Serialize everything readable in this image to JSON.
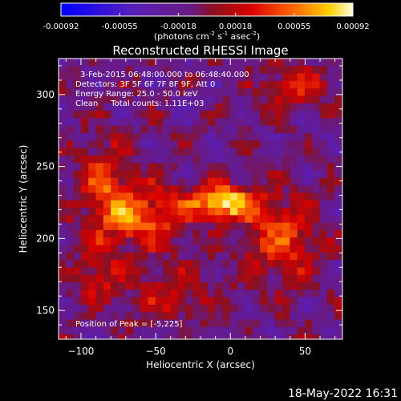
{
  "chart_data": {
    "type": "heatmap",
    "title": "Reconstructed RHESSI Image",
    "xlabel": "Heliocentric X (arcsec)",
    "ylabel": "Heliocentric Y (arcsec)",
    "xlim": [
      -115,
      75
    ],
    "ylim": [
      130,
      325
    ],
    "xticks": [
      -100,
      -50,
      0,
      50
    ],
    "yticks": [
      150,
      200,
      250,
      300
    ],
    "colorbar": {
      "range": [
        -0.00092,
        0.00092
      ],
      "tick_values": [
        -0.00092,
        -0.00055,
        -0.00018,
        0.00018,
        0.00055,
        0.00092
      ],
      "tick_labels": [
        "-0.00092",
        "-0.00055",
        "-0.00018",
        "0.00018",
        "0.00055",
        "0.00092"
      ],
      "units_label": "(photons cm",
      "units_sup1": "-2",
      "units_mid1": " s",
      "units_sup2": "-1",
      "units_mid2": " asec",
      "units_sup3": "-2",
      "units_end": ")"
    },
    "info_lines": [
      "3-Feb-2015 06:48:00.000 to 06:48:40.000",
      "Detectors: 3F 5F 6F 7F 8F 9F, Att 0",
      "Energy Range: 25.0 - 50.0 keV",
      "Clean     Total counts: 1.11E+03"
    ],
    "peak_label": "Position of Peak = [-5,225]",
    "peak": [
      -5,
      225
    ],
    "timestamp": "18-May-2022 16:31",
    "grid": false
  }
}
